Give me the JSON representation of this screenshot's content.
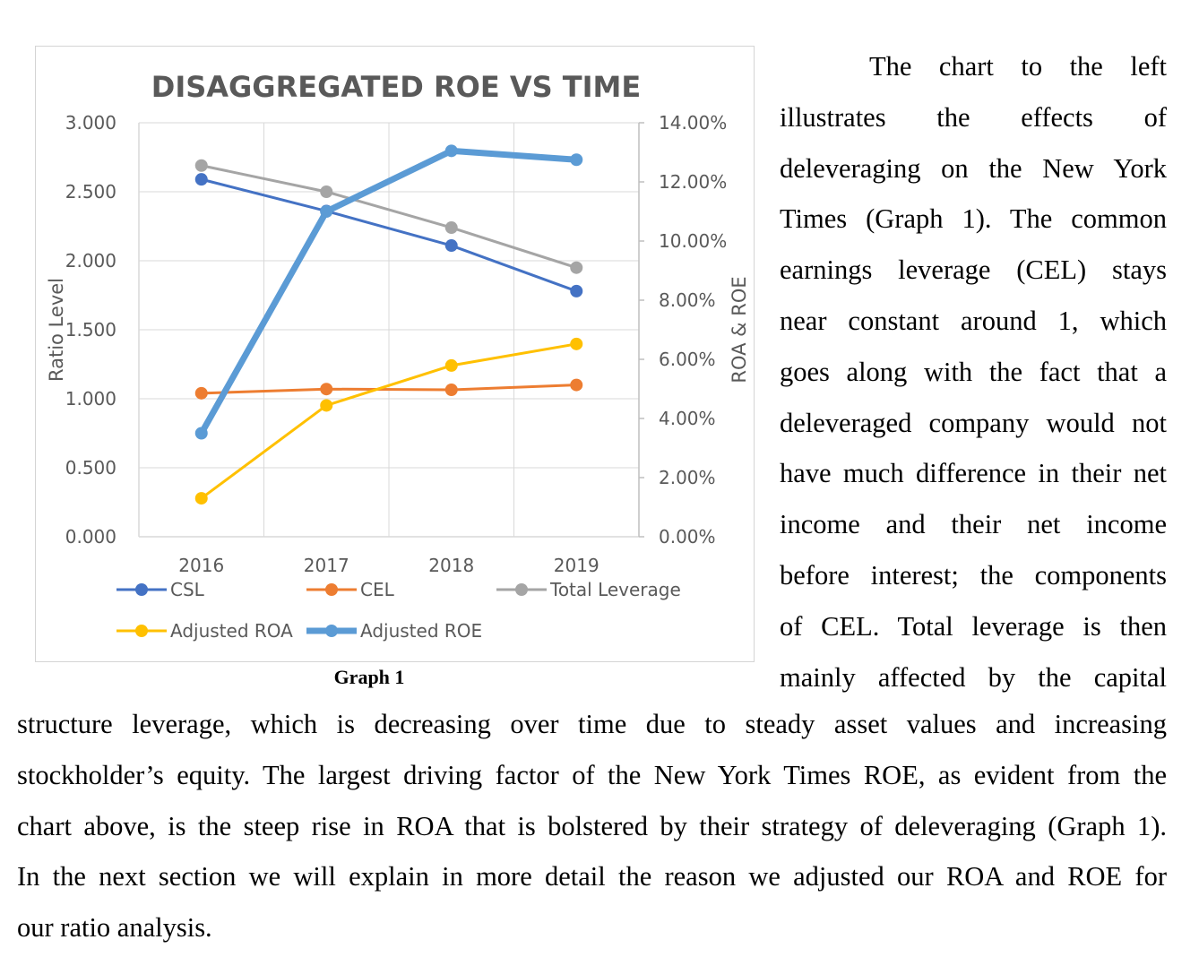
{
  "caption": "Graph 1",
  "side_paragraph_lines": [
    "The chart to the left",
    "illustrates the effects of",
    "deleveraging on the New York",
    "Times (Graph 1). The common",
    "earnings leverage (CEL) stays",
    "near constant around 1, which",
    "goes along with the fact that a",
    "deleveraged company would not",
    "have much difference in their net",
    "income and their net income",
    "before interest; the components",
    "of CEL. Total leverage is then",
    "mainly affected by the capital"
  ],
  "body_paragraph_lines": [
    "structure leverage, which is decreasing over time due to steady asset values and increasing",
    "stockholder’s equity. The largest driving factor of the New York Times ROE, as evident from the",
    "chart above, is the steep rise in ROA that is bolstered by their strategy of deleveraging (Graph 1).",
    "In the next section we will explain in more detail the reason we adjusted our ROA and ROE for",
    "our ratio analysis."
  ],
  "chart_data": {
    "type": "line",
    "title": "DISAGGREGATED ROE VS TIME",
    "xlabel": "",
    "ylabel": "Ratio Level",
    "y2label": "ROA & ROE",
    "categories": [
      "2016",
      "2017",
      "2018",
      "2019"
    ],
    "ylim": [
      0,
      3
    ],
    "y2lim": [
      0,
      0.14
    ],
    "yticks": [
      "0.000",
      "0.500",
      "1.000",
      "1.500",
      "2.000",
      "2.500",
      "3.000"
    ],
    "y2ticks": [
      "0.00%",
      "2.00%",
      "4.00%",
      "6.00%",
      "8.00%",
      "10.00%",
      "12.00%",
      "14.00%"
    ],
    "grid": true,
    "legend_position": "bottom",
    "series": [
      {
        "name": "CSL",
        "axis": "left",
        "color": "#4472c4",
        "values": [
          2.59,
          2.36,
          2.11,
          1.78
        ],
        "width": "normal"
      },
      {
        "name": "CEL",
        "axis": "left",
        "color": "#ed7d31",
        "values": [
          1.04,
          1.07,
          1.065,
          1.1
        ],
        "width": "normal"
      },
      {
        "name": "Total Leverage",
        "axis": "left",
        "color": "#a5a5a5",
        "values": [
          2.69,
          2.5,
          2.24,
          1.95
        ],
        "width": "normal"
      },
      {
        "name": "Adjusted ROA",
        "axis": "right",
        "color": "#ffc000",
        "values": [
          0.013,
          0.0444,
          0.0579,
          0.0652
        ],
        "width": "normal"
      },
      {
        "name": "Adjusted ROE",
        "axis": "right",
        "color": "#5b9bd5",
        "values": [
          0.035,
          0.11,
          0.1305,
          0.1275
        ],
        "width": "thick"
      }
    ]
  }
}
